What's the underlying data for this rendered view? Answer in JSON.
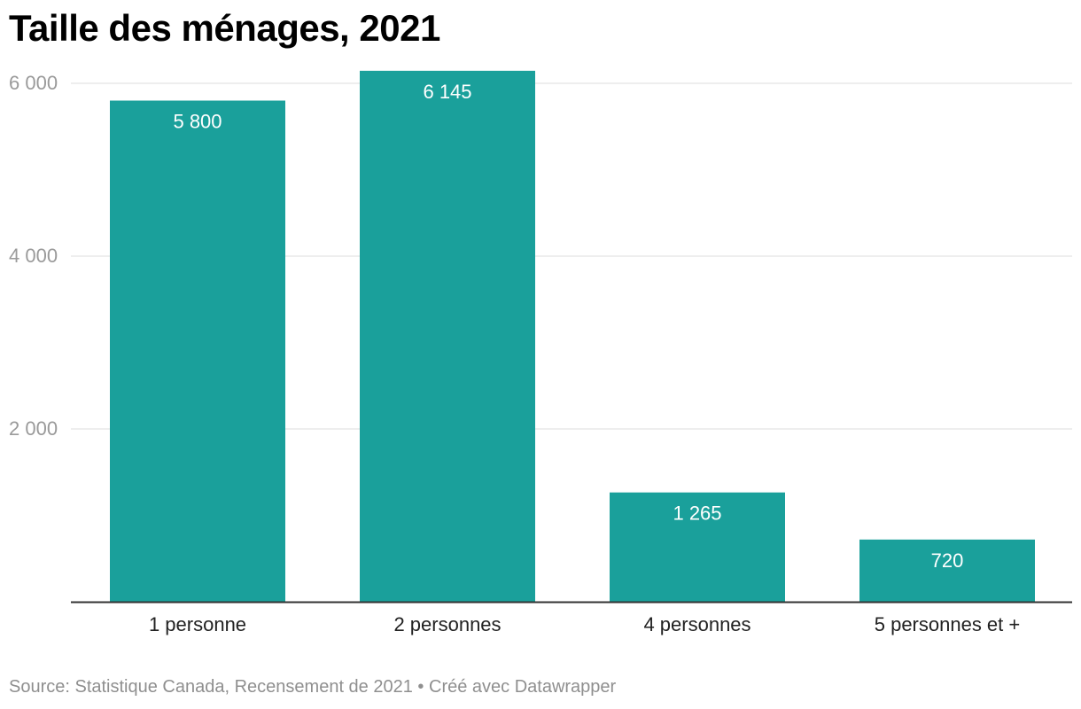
{
  "chart_data": {
    "type": "bar",
    "title": "Taille des ménages, 2021",
    "categories": [
      "1 personne",
      "2 personnes",
      "4 personnes",
      "5 personnes et +"
    ],
    "values": [
      5800,
      6145,
      1265,
      720
    ],
    "value_labels": [
      "5 800",
      "6 145",
      "1 265",
      "720"
    ],
    "y_ticks": [
      2000,
      4000,
      6000
    ],
    "y_tick_labels": [
      "2 000",
      "4 000",
      "6 000"
    ],
    "ylim": [
      0,
      6000
    ],
    "xlabel": "",
    "ylabel": "",
    "grid": true,
    "bar_color": "#1aa09b",
    "label_color": "#ffffff"
  },
  "footer": {
    "source": "Source: Statistique Canada, Recensement de 2021",
    "separator": "•",
    "credit": "Créé avec Datawrapper"
  }
}
